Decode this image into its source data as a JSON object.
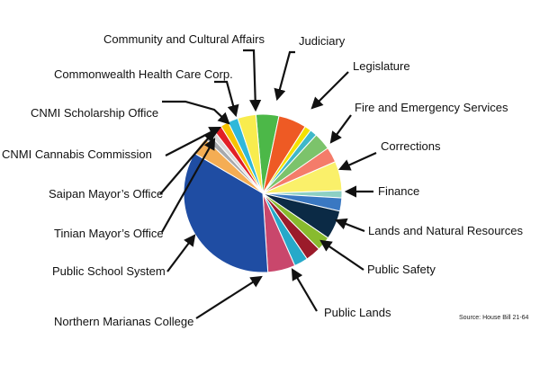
{
  "chart_data": {
    "type": "pie",
    "title": "",
    "source": "Source: House Bill 21-64",
    "slices": [
      {
        "label": "Judiciary",
        "value": 4.5,
        "color": "#4cb848"
      },
      {
        "label": "Legislature",
        "value": 5.5,
        "color": "#ee5a24"
      },
      {
        "label": "",
        "value": 1.3,
        "color": "#f5e100"
      },
      {
        "label": "Fire and Emergency Services",
        "value": 1.4,
        "color": "#3fb8c8"
      },
      {
        "label": "Corrections",
        "value": 3.4,
        "color": "#7cc36b"
      },
      {
        "label": "",
        "value": 3.0,
        "color": "#f47c6a"
      },
      {
        "label": "Finance",
        "value": 5.8,
        "color": "#faf06a"
      },
      {
        "label": "",
        "value": 1.4,
        "color": "#8dd0c4"
      },
      {
        "label": "Lands and Natural Resources",
        "value": 2.6,
        "color": "#3a78c2"
      },
      {
        "label": "Public Safety",
        "value": 5.7,
        "color": "#0b2a45"
      },
      {
        "label": "",
        "value": 2.8,
        "color": "#88bb2e"
      },
      {
        "label": "Public Lands",
        "value": 3.0,
        "color": "#9b1b2a"
      },
      {
        "label": "",
        "value": 2.7,
        "color": "#26a9c9"
      },
      {
        "label": "Northern Marianas College",
        "value": 5.4,
        "color": "#c9476c"
      },
      {
        "label": "Public School System",
        "value": 33.2,
        "color": "#1f4da3"
      },
      {
        "label": "Tinian Mayor’s Office",
        "value": 3.5,
        "color": "#f4ad54"
      },
      {
        "label": "Saipan Mayor’s Office",
        "value": 1.2,
        "color": "#a7a9ac"
      },
      {
        "label": "CNMI Cannabis Commission",
        "value": 1.1,
        "color": "#d9d9d9"
      },
      {
        "label": "CNMI Scholarship Office",
        "value": 1.6,
        "color": "#e21f26"
      },
      {
        "label": "Commonwealth Health Care Corp.",
        "value": 1.6,
        "color": "#f6c200"
      },
      {
        "label": "Community and Cultural Affairs",
        "value": 2.0,
        "color": "#2fb8d9"
      },
      {
        "label": "",
        "value": 3.6,
        "color": "#f8ec4e"
      }
    ]
  }
}
